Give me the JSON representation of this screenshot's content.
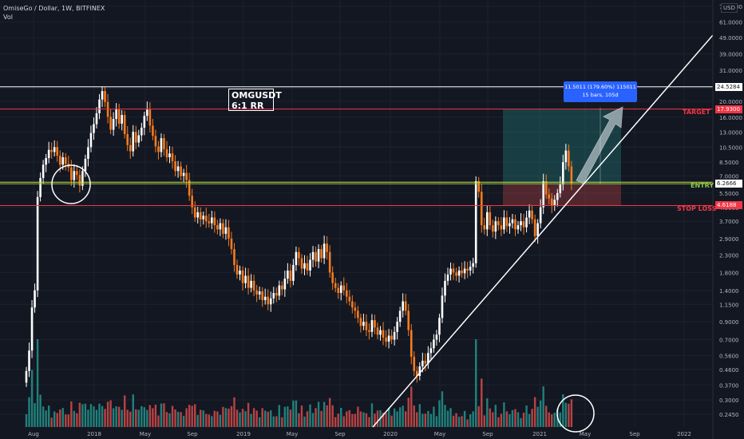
{
  "header": {
    "symbol_line": "OmiseGo / Dollar, 1W, BITFINEX",
    "indicator": "Vol",
    "currency": "USD"
  },
  "annotations": {
    "title_line1": "OMGUSDT",
    "title_line2": "6:1 RR",
    "target": "TARGET",
    "entry": "ENTRY",
    "stop": "STOP LOSS",
    "measure_line1": "11.5011 (179.60%) 115011",
    "measure_line2": "15 bars, 105d"
  },
  "price_badges": {
    "resistance": "24.5284",
    "target": "17.9300",
    "current": "6.2666",
    "stop": "4.6188"
  },
  "colors": {
    "background": "#131722",
    "up": "#ffffff",
    "down": "#f57c1f",
    "target": "#f23645",
    "entry": "#8bc34a",
    "resistance": "#ffffff",
    "vol_up": "#26a69a",
    "vol_down": "#ef5350"
  },
  "chart_data": {
    "type": "candlestick",
    "scale": "log",
    "y_ticks": [
      76.0,
      61.0,
      49.0,
      39.0,
      31.0,
      24.0,
      20.0,
      16.0,
      13.0,
      10.5,
      8.5,
      7.0,
      5.5,
      4.5,
      3.7,
      2.9,
      2.3,
      1.8,
      1.4,
      1.15,
      0.9,
      0.7,
      0.56,
      0.46,
      0.37,
      0.3,
      0.245
    ],
    "y_tick_labels": [
      "76.0000",
      "61.0000",
      "49.0000",
      "39.0000",
      "31.0000",
      "24.0000",
      "20.0000",
      "16.0000",
      "13.0000",
      "10.5000",
      "8.5000",
      "7.0000",
      "5.5000",
      "4.5000",
      "3.7000",
      "2.9000",
      "2.3000",
      "1.8000",
      "1.4000",
      "1.1500",
      "0.9000",
      "0.7000",
      "0.5600",
      "0.4600",
      "0.3700",
      "0.3000",
      "0.2450"
    ],
    "x_tick_labels": [
      "Aug",
      "2018",
      "May",
      "Sep",
      "2019",
      "May",
      "Sep",
      "2020",
      "May",
      "Sep",
      "2021",
      "May",
      "Sep",
      "2022"
    ],
    "levels": {
      "resistance": 24.5284,
      "target": 17.93,
      "entry": 6.2666,
      "stop": 4.6188
    },
    "weekly_close": [
      0.45,
      0.6,
      1.1,
      1.4,
      5.2,
      6.8,
      8.2,
      9.0,
      10.1,
      9.8,
      10.5,
      9.3,
      8.2,
      9.1,
      8.3,
      7.9,
      6.6,
      7.5,
      7.1,
      6.1,
      7.5,
      8.9,
      10.5,
      12.8,
      14.5,
      16.9,
      20.5,
      23.1,
      19.8,
      16.1,
      13.4,
      15.6,
      17.9,
      14.6,
      16.5,
      12.6,
      10.8,
      9.9,
      13.0,
      11.2,
      12.4,
      13.8,
      16.3,
      17.8,
      14.2,
      12.3,
      10.6,
      9.8,
      11.9,
      10.2,
      9.1,
      9.6,
      8.6,
      7.5,
      8.0,
      7.0,
      7.3,
      6.6,
      5.3,
      4.5,
      3.9,
      4.2,
      3.8,
      4.0,
      3.7,
      3.6,
      3.9,
      3.5,
      3.3,
      3.6,
      3.1,
      3.4,
      2.9,
      2.5,
      2.0,
      1.75,
      1.85,
      1.55,
      1.72,
      1.45,
      1.6,
      1.4,
      1.32,
      1.38,
      1.22,
      1.28,
      1.15,
      1.25,
      1.35,
      1.3,
      1.5,
      1.42,
      1.65,
      1.85,
      1.6,
      2.0,
      2.4,
      2.2,
      1.9,
      2.05,
      1.85,
      2.15,
      2.4,
      2.1,
      2.5,
      2.2,
      2.7,
      2.4,
      1.8,
      1.55,
      1.45,
      1.35,
      1.5,
      1.4,
      1.28,
      1.2,
      1.1,
      1.05,
      0.95,
      0.85,
      0.9,
      0.8,
      0.78,
      0.92,
      0.83,
      0.75,
      0.8,
      0.72,
      0.68,
      0.74,
      0.7,
      0.78,
      0.9,
      1.05,
      1.2,
      1.05,
      0.8,
      0.55,
      0.45,
      0.42,
      0.48,
      0.52,
      0.5,
      0.58,
      0.62,
      0.7,
      0.75,
      0.95,
      1.3,
      1.6,
      1.75,
      1.9,
      1.8,
      1.72,
      1.85,
      1.78,
      1.9,
      1.85,
      1.95,
      2.05,
      6.5,
      5.6,
      3.5,
      3.3,
      4.2,
      3.5,
      3.2,
      3.7,
      3.5,
      3.3,
      3.9,
      3.45,
      3.6,
      3.8,
      3.3,
      3.5,
      3.7,
      3.4,
      3.9,
      4.3,
      3.8,
      3.0,
      3.6,
      4.5,
      6.5,
      5.4,
      5.1,
      4.6,
      5.0,
      5.5,
      6.2,
      8.5,
      10.0,
      8.0,
      6.3
    ],
    "measure": {
      "change": 11.5011,
      "percent": 179.6,
      "bars": 15,
      "days": 105
    }
  }
}
